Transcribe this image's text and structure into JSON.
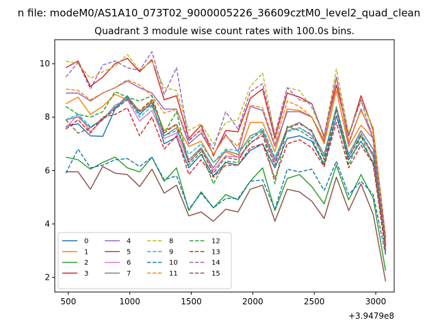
{
  "figure": {
    "suptitle": "n file: modeM0/AS1A10_073T02_9000005226_36609cztM0_level2_quad_clean",
    "offset_label": "+3.9479e8"
  },
  "chart_data": {
    "type": "line",
    "title": "Quadrant 3 module wise count rates with 100.0s bins.",
    "xlabel": "",
    "ylabel": "",
    "xlim": [
      390,
      3150
    ],
    "ylim": [
      1.45,
      10.9
    ],
    "x_ticks": [
      500,
      1000,
      1500,
      2000,
      2500,
      3000
    ],
    "x_tick_labels": [
      "500",
      "1000",
      "1500",
      "2000",
      "2500",
      "3000"
    ],
    "y_ticks": [
      2,
      4,
      6,
      8,
      10
    ],
    "y_tick_labels": [
      "2",
      "4",
      "6",
      "8",
      "10"
    ],
    "grid": false,
    "legend_position": "lower-left",
    "legend_columns": 4,
    "x": [
      480,
      580,
      680,
      780,
      880,
      980,
      1080,
      1180,
      1280,
      1380,
      1480,
      1580,
      1680,
      1780,
      1880,
      1980,
      2080,
      2180,
      2280,
      2380,
      2480,
      2580,
      2680,
      2780,
      2880,
      2980,
      3080
    ],
    "series": [
      {
        "name": "0",
        "color": "#1f77b4",
        "dash": false,
        "values": [
          7.65,
          7.75,
          7.3,
          7.28,
          8.3,
          8.75,
          8.1,
          8.55,
          7.0,
          7.25,
          6.1,
          6.6,
          5.8,
          6.3,
          6.2,
          6.75,
          7.0,
          6.1,
          7.2,
          7.3,
          7.1,
          6.2,
          8.05,
          6.4,
          7.1,
          6.3,
          3.2
        ]
      },
      {
        "name": "1",
        "color": "#ff7f0e",
        "dash": false,
        "values": [
          8.5,
          8.75,
          8.1,
          8.4,
          8.85,
          8.65,
          8.2,
          8.6,
          7.5,
          7.7,
          6.9,
          7.1,
          6.3,
          6.7,
          6.5,
          7.8,
          7.8,
          6.7,
          8.3,
          8.25,
          8.0,
          7.0,
          9.0,
          6.9,
          7.7,
          7.2,
          3.1
        ]
      },
      {
        "name": "2",
        "color": "#2ca02c",
        "dash": false,
        "values": [
          6.5,
          6.4,
          6.05,
          6.3,
          6.5,
          6.1,
          5.95,
          6.5,
          5.6,
          6.1,
          4.5,
          5.2,
          4.6,
          5.1,
          4.9,
          5.6,
          6.1,
          4.5,
          5.7,
          5.85,
          5.4,
          4.75,
          6.2,
          4.9,
          5.85,
          4.95,
          2.25
        ]
      },
      {
        "name": "3",
        "color": "#d62728",
        "dash": false,
        "values": [
          9.85,
          10.1,
          9.15,
          9.5,
          10.0,
          10.2,
          9.7,
          10.15,
          8.65,
          8.8,
          7.2,
          7.7,
          6.55,
          7.5,
          7.45,
          8.7,
          9.05,
          7.2,
          8.9,
          8.75,
          8.5,
          7.25,
          9.2,
          7.3,
          8.8,
          7.5,
          3.5
        ]
      },
      {
        "name": "4",
        "color": "#9467bd",
        "dash": false,
        "values": [
          8.9,
          8.9,
          8.6,
          8.9,
          9.1,
          9.35,
          9.1,
          8.9,
          8.3,
          8.3,
          7.0,
          7.4,
          6.6,
          7.35,
          6.7,
          8.4,
          8.25,
          6.9,
          8.2,
          8.2,
          8.0,
          7.1,
          9.5,
          7.0,
          8.3,
          7.2,
          3.0
        ]
      },
      {
        "name": "5",
        "color": "#8c564b",
        "dash": false,
        "values": [
          5.95,
          5.95,
          5.3,
          6.15,
          5.9,
          5.85,
          5.4,
          6.05,
          5.15,
          5.45,
          4.3,
          4.45,
          4.1,
          4.55,
          4.45,
          5.3,
          5.45,
          4.1,
          5.3,
          5.2,
          4.85,
          4.2,
          5.75,
          4.5,
          5.5,
          4.35,
          1.85
        ]
      },
      {
        "name": "6",
        "color": "#e377c2",
        "dash": false,
        "values": [
          7.6,
          8.1,
          7.45,
          7.9,
          8.45,
          8.65,
          7.85,
          8.25,
          7.2,
          7.4,
          6.3,
          6.8,
          6.0,
          6.55,
          6.5,
          7.0,
          7.4,
          6.3,
          7.5,
          7.6,
          7.3,
          6.5,
          8.3,
          6.5,
          7.35,
          6.5,
          3.15
        ]
      },
      {
        "name": "7",
        "color": "#7f7f7f",
        "dash": false,
        "values": [
          7.9,
          8.0,
          7.6,
          7.95,
          8.35,
          8.8,
          8.2,
          8.45,
          7.3,
          7.6,
          6.4,
          6.85,
          6.1,
          6.75,
          6.6,
          7.3,
          7.5,
          6.4,
          7.6,
          7.8,
          7.45,
          6.6,
          8.35,
          6.6,
          7.5,
          6.8,
          3.25
        ]
      },
      {
        "name": "8",
        "color": "#bcbd22",
        "dash": true,
        "values": [
          10.1,
          10.0,
          9.45,
          9.7,
          9.9,
          10.35,
          9.75,
          10.1,
          9.1,
          9.0,
          7.5,
          7.75,
          7.0,
          7.8,
          7.9,
          9.15,
          9.65,
          7.3,
          9.1,
          9.0,
          8.35,
          7.3,
          9.8,
          7.4,
          8.6,
          7.6,
          3.4
        ]
      },
      {
        "name": "9",
        "color": "#17becf",
        "dash": true,
        "values": [
          7.9,
          8.1,
          7.65,
          7.9,
          8.4,
          8.7,
          8.0,
          8.4,
          7.3,
          7.5,
          6.6,
          7.0,
          6.3,
          6.8,
          6.75,
          7.15,
          7.6,
          6.5,
          7.45,
          7.6,
          7.35,
          6.5,
          8.4,
          6.6,
          7.4,
          6.6,
          3.15
        ]
      },
      {
        "name": "10",
        "color": "#1f77b4",
        "dash": true,
        "values": [
          5.9,
          6.8,
          6.1,
          6.2,
          6.4,
          6.45,
          6.15,
          6.5,
          5.65,
          5.8,
          4.55,
          5.15,
          4.6,
          4.95,
          4.95,
          5.6,
          5.65,
          4.55,
          6.05,
          5.95,
          6.05,
          5.25,
          6.35,
          5.1,
          5.6,
          5.1,
          2.85
        ]
      },
      {
        "name": "11",
        "color": "#ff7f0e",
        "dash": true,
        "values": [
          9.05,
          9.0,
          8.65,
          8.9,
          9.1,
          9.4,
          9.2,
          8.8,
          8.15,
          8.3,
          7.15,
          7.5,
          6.6,
          7.3,
          6.9,
          8.45,
          8.35,
          7.0,
          8.6,
          8.4,
          8.0,
          7.15,
          9.5,
          7.1,
          8.25,
          7.35,
          3.2
        ]
      },
      {
        "name": "12",
        "color": "#2ca02c",
        "dash": true,
        "values": [
          8.4,
          8.1,
          8.0,
          8.2,
          8.95,
          8.75,
          8.6,
          8.8,
          7.4,
          8.2,
          6.2,
          6.7,
          5.5,
          6.35,
          6.3,
          7.2,
          7.45,
          5.5,
          7.65,
          7.5,
          7.2,
          6.25,
          8.3,
          6.2,
          7.3,
          6.2,
          3.15
        ]
      },
      {
        "name": "13",
        "color": "#d62728",
        "dash": true,
        "values": [
          7.55,
          7.9,
          7.4,
          8.0,
          8.1,
          8.35,
          7.3,
          8.0,
          6.8,
          7.3,
          5.85,
          6.4,
          5.75,
          6.2,
          6.2,
          6.85,
          7.0,
          5.7,
          7.0,
          7.15,
          6.85,
          6.15,
          7.8,
          6.1,
          6.95,
          6.25,
          2.95
        ]
      },
      {
        "name": "14",
        "color": "#9467bd",
        "dash": true,
        "values": [
          9.5,
          10.05,
          9.05,
          9.95,
          10.1,
          9.85,
          9.75,
          10.45,
          8.85,
          9.85,
          7.1,
          7.55,
          6.8,
          8.2,
          7.55,
          8.95,
          9.25,
          7.35,
          9.1,
          8.65,
          8.5,
          7.3,
          9.5,
          7.3,
          8.65,
          7.1,
          3.35
        ]
      },
      {
        "name": "15",
        "color": "#8c564b",
        "dash": true,
        "values": [
          7.9,
          7.4,
          7.6,
          7.9,
          8.3,
          8.65,
          8.25,
          8.65,
          7.4,
          7.75,
          6.3,
          6.8,
          5.9,
          6.5,
          6.4,
          7.05,
          7.3,
          6.2,
          7.6,
          7.75,
          7.5,
          6.4,
          8.3,
          6.5,
          7.3,
          6.6,
          3.2
        ]
      }
    ]
  }
}
